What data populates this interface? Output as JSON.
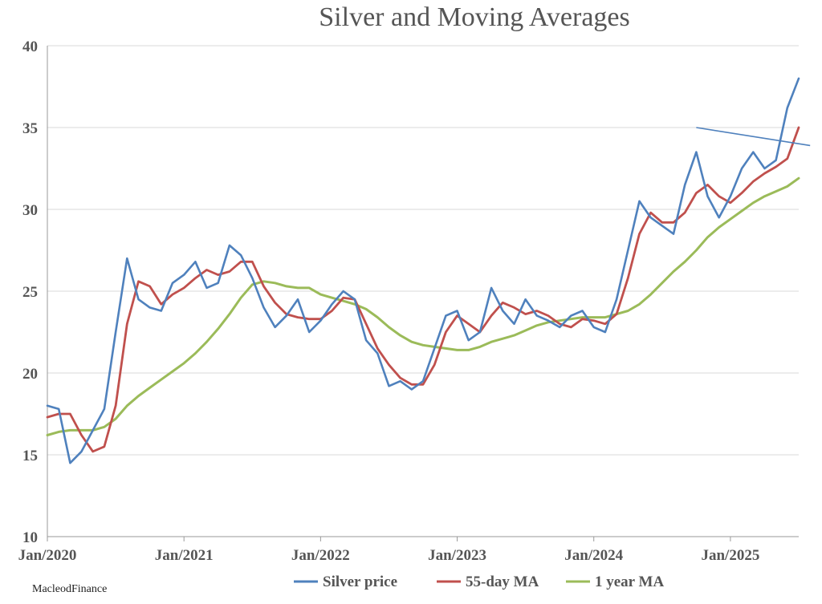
{
  "chart_data": {
    "type": "line",
    "title": "Silver and Moving Averages",
    "xlabel": "",
    "ylabel": "",
    "x_ticks": [
      "Jan/2020",
      "Jan/2021",
      "Jan/2022",
      "Jan/2023",
      "Jan/2024",
      "Jan/2025"
    ],
    "y_ticks": [
      10,
      15,
      20,
      25,
      30,
      35,
      40
    ],
    "ylim": [
      10,
      40
    ],
    "xlim": [
      "2020-01",
      "2025-07"
    ],
    "grid": "horizontal",
    "legend_position": "bottom",
    "x": [
      "2020-01",
      "2020-02",
      "2020-03",
      "2020-04",
      "2020-05",
      "2020-06",
      "2020-07",
      "2020-08",
      "2020-09",
      "2020-10",
      "2020-11",
      "2020-12",
      "2021-01",
      "2021-02",
      "2021-03",
      "2021-04",
      "2021-05",
      "2021-06",
      "2021-07",
      "2021-08",
      "2021-09",
      "2021-10",
      "2021-11",
      "2021-12",
      "2022-01",
      "2022-02",
      "2022-03",
      "2022-04",
      "2022-05",
      "2022-06",
      "2022-07",
      "2022-08",
      "2022-09",
      "2022-10",
      "2022-11",
      "2022-12",
      "2023-01",
      "2023-02",
      "2023-03",
      "2023-04",
      "2023-05",
      "2023-06",
      "2023-07",
      "2023-08",
      "2023-09",
      "2023-10",
      "2023-11",
      "2023-12",
      "2024-01",
      "2024-02",
      "2024-03",
      "2024-04",
      "2024-05",
      "2024-06",
      "2024-07",
      "2024-08",
      "2024-09",
      "2024-10",
      "2024-11",
      "2024-12",
      "2025-01",
      "2025-02",
      "2025-03",
      "2025-04",
      "2025-05",
      "2025-06",
      "2025-07"
    ],
    "series": [
      {
        "name": "Silver price",
        "color": "#4f81bd",
        "values": [
          18.0,
          17.8,
          14.5,
          15.2,
          16.5,
          17.8,
          22.5,
          27.0,
          24.5,
          24.0,
          23.8,
          25.5,
          26.0,
          26.8,
          25.2,
          25.5,
          27.8,
          27.2,
          25.8,
          24.0,
          22.8,
          23.5,
          24.5,
          22.5,
          23.2,
          24.2,
          25.0,
          24.5,
          22.0,
          21.2,
          19.2,
          19.5,
          19.0,
          19.5,
          21.5,
          23.5,
          23.8,
          22.0,
          22.5,
          25.2,
          23.8,
          23.0,
          24.5,
          23.5,
          23.2,
          22.8,
          23.5,
          23.8,
          22.8,
          22.5,
          24.5,
          27.5,
          30.5,
          29.5,
          29.0,
          28.5,
          31.5,
          33.5,
          30.8,
          29.5,
          30.8,
          32.5,
          33.5,
          32.5,
          33.0,
          36.2,
          38.0
        ]
      },
      {
        "name": "55-day MA",
        "color": "#c0504d",
        "values": [
          17.3,
          17.5,
          17.5,
          16.2,
          15.2,
          15.5,
          18.0,
          23.0,
          25.6,
          25.3,
          24.2,
          24.8,
          25.2,
          25.8,
          26.3,
          26.0,
          26.2,
          26.8,
          26.8,
          25.3,
          24.3,
          23.6,
          23.4,
          23.3,
          23.3,
          23.8,
          24.6,
          24.5,
          23.0,
          21.5,
          20.5,
          19.7,
          19.3,
          19.3,
          20.5,
          22.5,
          23.5,
          23.0,
          22.5,
          23.5,
          24.3,
          24.0,
          23.6,
          23.8,
          23.5,
          23.0,
          22.8,
          23.3,
          23.2,
          23.0,
          23.6,
          25.8,
          28.5,
          29.8,
          29.2,
          29.2,
          29.8,
          31.0,
          31.5,
          30.8,
          30.4,
          31.0,
          31.7,
          32.2,
          32.6,
          33.1,
          35.0
        ]
      },
      {
        "name": "1 year MA",
        "color": "#9bbb59",
        "values": [
          16.2,
          16.4,
          16.5,
          16.5,
          16.5,
          16.7,
          17.2,
          18.0,
          18.6,
          19.1,
          19.6,
          20.1,
          20.6,
          21.2,
          21.9,
          22.7,
          23.6,
          24.6,
          25.4,
          25.6,
          25.5,
          25.3,
          25.2,
          25.2,
          24.8,
          24.6,
          24.4,
          24.2,
          23.9,
          23.4,
          22.8,
          22.3,
          21.9,
          21.7,
          21.6,
          21.5,
          21.4,
          21.4,
          21.6,
          21.9,
          22.1,
          22.3,
          22.6,
          22.9,
          23.1,
          23.2,
          23.3,
          23.4,
          23.4,
          23.4,
          23.6,
          23.8,
          24.2,
          24.8,
          25.5,
          26.2,
          26.8,
          27.5,
          28.3,
          28.9,
          29.4,
          29.9,
          30.4,
          30.8,
          31.1,
          31.4,
          31.9
        ]
      }
    ],
    "annotations": [
      {
        "type": "trend-line",
        "from": {
          "x": "2024-10",
          "y": 35.0
        },
        "to": {
          "x": "2025-08",
          "y": 33.9
        }
      }
    ]
  },
  "credit": "MacleodFinance"
}
